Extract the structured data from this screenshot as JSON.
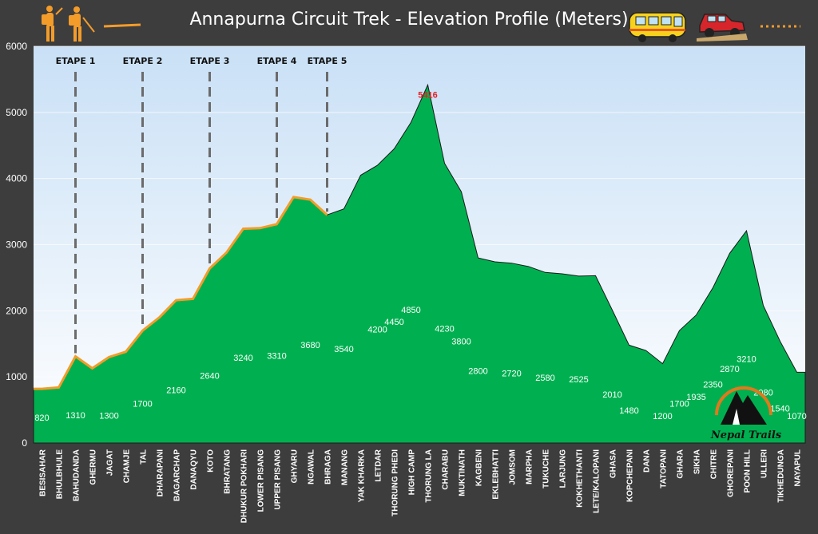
{
  "title": "Annapurna Circuit Trek - Elevation Profile (Meters)",
  "logo_text": "Nepal Trails",
  "colors": {
    "background": "#3d3d3d",
    "plot_top": "#cfe4f8",
    "plot_bottom": "#ffffff",
    "area_fill": "#00b050",
    "trek_line": "#f39c2a",
    "peak_label": "#e32222",
    "stage_line": "#6b6b6b"
  },
  "chart_data": {
    "type": "area",
    "ylim": [
      0,
      6000
    ],
    "yticks": [
      0,
      1000,
      2000,
      3000,
      4000,
      5000,
      6000
    ],
    "categories": [
      "BESISAHAR",
      "BHULBHULE",
      "BAHUDANDA",
      "GHERMU",
      "JAGAT",
      "CHAMJE",
      "TAL",
      "DHARAPANI",
      "BAGARCHAP",
      "DANAQYU",
      "KOTO",
      "BHRATANG",
      "DHUKUR POKHARI",
      "LOWER PISANG",
      "UPPER PISANG",
      "GHYARU",
      "NGAWAL",
      "BHRAGA",
      "MANANG",
      "YAK KHARKA",
      "LETDAR",
      "THORUNG PHEDI",
      "HIGH CAMP",
      "THORUNG LA",
      "CHARABU",
      "MUKTINATH",
      "KAGBENI",
      "EKLEBHATTI",
      "JOMSOM",
      "MARPHA",
      "TUKUCHE",
      "LARJUNG",
      "KOKHETHANTI",
      "LETE/KALOPANI",
      "GHASA",
      "KOPCHEPANI",
      "DANA",
      "TATOPANI",
      "GHARA",
      "SIKHA",
      "CHITRE",
      "GHOREPANI",
      "POON HILL",
      "ULLERI",
      "TIKHEDUNGA",
      "NAYAPUL"
    ],
    "values": [
      820,
      840,
      1310,
      1130,
      1300,
      1380,
      1700,
      1900,
      2160,
      2180,
      2640,
      2880,
      3240,
      3250,
      3310,
      3720,
      3680,
      3450,
      3540,
      4050,
      4200,
      4450,
      4850,
      5416,
      4230,
      3800,
      2800,
      2740,
      2720,
      2670,
      2580,
      2560,
      2525,
      2530,
      2010,
      1480,
      1400,
      1200,
      1700,
      1935,
      2350,
      2870,
      3210,
      2080,
      1540,
      1070
    ],
    "data_labels": [
      {
        "index": 0,
        "text": "820"
      },
      {
        "index": 2,
        "text": "1310"
      },
      {
        "index": 4,
        "text": "1300"
      },
      {
        "index": 6,
        "text": "1700"
      },
      {
        "index": 8,
        "text": "2160"
      },
      {
        "index": 10,
        "text": "2640"
      },
      {
        "index": 12,
        "text": "3240"
      },
      {
        "index": 14,
        "text": "3310"
      },
      {
        "index": 16,
        "text": "3680"
      },
      {
        "index": 18,
        "text": "3540"
      },
      {
        "index": 20,
        "text": "4200"
      },
      {
        "index": 21,
        "text": "4450"
      },
      {
        "index": 22,
        "text": "4850"
      },
      {
        "index": 23,
        "text": "5416"
      },
      {
        "index": 24,
        "text": "4230"
      },
      {
        "index": 25,
        "text": "3800"
      },
      {
        "index": 26,
        "text": "2800"
      },
      {
        "index": 28,
        "text": "2720"
      },
      {
        "index": 30,
        "text": "2580"
      },
      {
        "index": 32,
        "text": "2525"
      },
      {
        "index": 34,
        "text": "2010"
      },
      {
        "index": 35,
        "text": "1480"
      },
      {
        "index": 37,
        "text": "1200"
      },
      {
        "index": 38,
        "text": "1700"
      },
      {
        "index": 39,
        "text": "1935"
      },
      {
        "index": 40,
        "text": "2350"
      },
      {
        "index": 41,
        "text": "2870"
      },
      {
        "index": 42,
        "text": "3210"
      },
      {
        "index": 43,
        "text": "2080"
      },
      {
        "index": 44,
        "text": "1540"
      },
      {
        "index": 45,
        "text": "1070"
      }
    ],
    "stages": [
      {
        "label": "ETAPE 1",
        "index": 2
      },
      {
        "label": "ETAPE 2",
        "index": 6
      },
      {
        "label": "ETAPE 3",
        "index": 10
      },
      {
        "label": "ETAPE 4",
        "index": 14
      },
      {
        "label": "ETAPE 5",
        "index": 17
      }
    ],
    "trek_line_range": [
      0,
      17
    ],
    "peak_index": 23,
    "grid": true
  },
  "legend_icons": [
    "hikers-icon",
    "trek-line-icon",
    "bus-icon",
    "jeep-icon",
    "dotted-line-icon"
  ]
}
